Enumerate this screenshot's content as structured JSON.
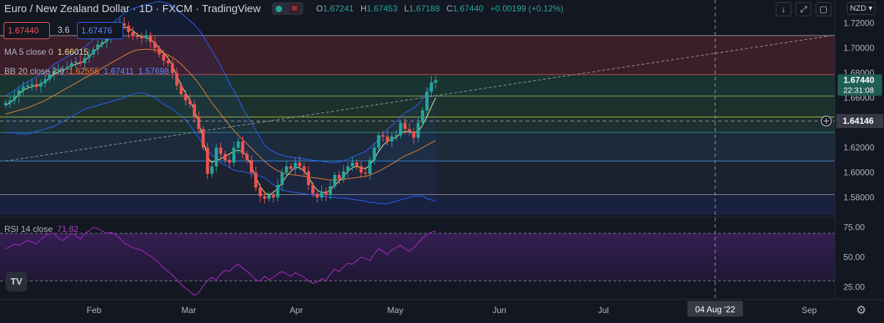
{
  "header": {
    "symbol": "Euro / New Zealand Dollar · 1D · FXCM · TradingView",
    "toggle_icon": "wave-icon",
    "open_label": "O",
    "open": "1.67241",
    "high_label": "H",
    "high": "1.67453",
    "low_label": "L",
    "low": "1.67188",
    "close_label": "C",
    "close": "1.67440",
    "change": "+0.00199 (+0.12%)"
  },
  "quote": {
    "sell": "1.67440",
    "spread": "3.6",
    "buy": "1.67476"
  },
  "indicators": {
    "ma_label": "MA 5 close 0",
    "ma_value": "1.66015",
    "bb_label": "BB 20 close 2.0",
    "bb_basis": "1.62555",
    "bb_upper": "1.67411",
    "bb_lower": "1.57698",
    "rsi_label": "RSI 14 close",
    "rsi_value": "71.82"
  },
  "currency": "NZD",
  "colors": {
    "up": "#26a69a",
    "down": "#ef5350",
    "ma": "#f0e68c",
    "bb_basis": "#e8852e",
    "bb_band": "#2962ff",
    "rsi": "#9c27b0",
    "background": "#131722"
  },
  "chart_data": [
    {
      "type": "candlestick",
      "title": "Euro / New Zealand Dollar · 1D · FXCM",
      "ylim": [
        1.566,
        1.725
      ],
      "yticks": [
        "1.72000",
        "1.70000",
        "1.68000",
        "1.66000",
        "1.64000",
        "1.62000",
        "1.60000",
        "1.58000"
      ],
      "last_price": "1.67440",
      "countdown": "22:31:08",
      "crosshair_price": "1.64146",
      "crosshair_date": "04 Aug '22",
      "xticks": [
        "Feb",
        "Mar",
        "Apr",
        "May",
        "Jun",
        "Jul",
        "Sep"
      ],
      "horizontal_levels": [
        1.7101,
        1.6788,
        1.6615,
        1.6447,
        1.6322,
        1.6093,
        1.5823
      ],
      "close": [
        1.656,
        1.658,
        1.661,
        1.666,
        1.669,
        1.67,
        1.671,
        1.669,
        1.672,
        1.675,
        1.679,
        1.682,
        1.683,
        1.683,
        1.685,
        1.688,
        1.689,
        1.688,
        1.692,
        1.695,
        1.699,
        1.703,
        1.705,
        1.708,
        1.711,
        1.715,
        1.72,
        1.718,
        1.713,
        1.71,
        1.709,
        1.708,
        1.71,
        1.705,
        1.7,
        1.695,
        1.69,
        1.688,
        1.68,
        1.67,
        1.663,
        1.658,
        1.655,
        1.645,
        1.635,
        1.62,
        1.599,
        1.605,
        1.62,
        1.615,
        1.61,
        1.608,
        1.62,
        1.625,
        1.615,
        1.61,
        1.6,
        1.588,
        1.581,
        1.579,
        1.582,
        1.58,
        1.59,
        1.6,
        1.605,
        1.603,
        1.608,
        1.605,
        1.601,
        1.59,
        1.583,
        1.58,
        1.585,
        1.582,
        1.589,
        1.598,
        1.595,
        1.601,
        1.605,
        1.608,
        1.605,
        1.6,
        1.599,
        1.61,
        1.62,
        1.63,
        1.629,
        1.625,
        1.629,
        1.63,
        1.64,
        1.635,
        1.633,
        1.628,
        1.64,
        1.65,
        1.665,
        1.6725,
        1.6744
      ],
      "ma5": [
        1.654,
        1.656,
        1.659,
        1.663,
        1.666,
        1.668,
        1.669,
        1.67,
        1.671,
        1.673,
        1.676,
        1.679,
        1.681,
        1.682,
        1.684,
        1.686,
        1.687,
        1.688,
        1.69,
        1.693,
        1.697,
        1.7,
        1.703,
        1.706,
        1.709,
        1.712,
        1.716,
        1.717,
        1.716,
        1.714,
        1.711,
        1.709,
        1.7085,
        1.707,
        1.704,
        1.7,
        1.696,
        1.692,
        1.686,
        1.678,
        1.67,
        1.664,
        1.658,
        1.65,
        1.64,
        1.627,
        1.612,
        1.608,
        1.61,
        1.611,
        1.613,
        1.615,
        1.617,
        1.618,
        1.617,
        1.613,
        1.605,
        1.596,
        1.589,
        1.584,
        1.582,
        1.584,
        1.587,
        1.592,
        1.597,
        1.601,
        1.604,
        1.604,
        1.601,
        1.597,
        1.59,
        1.586,
        1.584,
        1.584,
        1.586,
        1.59,
        1.593,
        1.597,
        1.601,
        1.604,
        1.605,
        1.604,
        1.603,
        1.606,
        1.611,
        1.617,
        1.622,
        1.625,
        1.627,
        1.628,
        1.632,
        1.633,
        1.633,
        1.632,
        1.633,
        1.638,
        1.645,
        1.653,
        1.6601
      ],
      "bb_basis": [
        1.647,
        1.648,
        1.649,
        1.65,
        1.651,
        1.652,
        1.6535,
        1.655,
        1.6565,
        1.658,
        1.66,
        1.662,
        1.664,
        1.666,
        1.668,
        1.67,
        1.672,
        1.674,
        1.676,
        1.678,
        1.68,
        1.682,
        1.684,
        1.686,
        1.688,
        1.69,
        1.692,
        1.694,
        1.696,
        1.6975,
        1.6985,
        1.699,
        1.6992,
        1.699,
        1.6985,
        1.6975,
        1.696,
        1.6945,
        1.6925,
        1.69,
        1.687,
        1.6835,
        1.68,
        1.676,
        1.6715,
        1.6665,
        1.661,
        1.656,
        1.6515,
        1.647,
        1.6425,
        1.638,
        1.634,
        1.63,
        1.6265,
        1.623,
        1.6195,
        1.616,
        1.6125,
        1.609,
        1.606,
        1.6035,
        1.6015,
        1.6,
        1.599,
        1.5985,
        1.598,
        1.5975,
        1.597,
        1.5965,
        1.596,
        1.5955,
        1.595,
        1.5945,
        1.594,
        1.594,
        1.594,
        1.5945,
        1.595,
        1.5955,
        1.596,
        1.5965,
        1.597,
        1.598,
        1.5995,
        1.601,
        1.603,
        1.605,
        1.607,
        1.609,
        1.6115,
        1.6135,
        1.615,
        1.6165,
        1.618,
        1.62,
        1.622,
        1.624,
        1.6256
      ],
      "bb_upper": [
        1.662,
        1.664,
        1.666,
        1.669,
        1.671,
        1.673,
        1.675,
        1.677,
        1.679,
        1.681,
        1.684,
        1.687,
        1.689,
        1.691,
        1.693,
        1.695,
        1.697,
        1.699,
        1.701,
        1.704,
        1.707,
        1.71,
        1.713,
        1.716,
        1.719,
        1.722,
        1.725,
        1.728,
        1.73,
        1.732,
        1.733,
        1.734,
        1.735,
        1.736,
        1.737,
        1.7375,
        1.737,
        1.736,
        1.734,
        1.732,
        1.728,
        1.725,
        1.722,
        1.719,
        1.715,
        1.71,
        1.704,
        1.698,
        1.692,
        1.686,
        1.679,
        1.672,
        1.666,
        1.659,
        1.652,
        1.646,
        1.64,
        1.634,
        1.628,
        1.622,
        1.619,
        1.617,
        1.615,
        1.614,
        1.613,
        1.6125,
        1.612,
        1.6115,
        1.611,
        1.6105,
        1.61,
        1.6095,
        1.609,
        1.6085,
        1.608,
        1.608,
        1.6085,
        1.6095,
        1.611,
        1.6125,
        1.614,
        1.6155,
        1.617,
        1.62,
        1.623,
        1.627,
        1.631,
        1.635,
        1.638,
        1.641,
        1.645,
        1.648,
        1.65,
        1.652,
        1.655,
        1.659,
        1.665,
        1.67,
        1.6741
      ],
      "bb_lower": [
        1.632,
        1.632,
        1.632,
        1.631,
        1.631,
        1.631,
        1.632,
        1.633,
        1.634,
        1.635,
        1.636,
        1.637,
        1.639,
        1.641,
        1.643,
        1.645,
        1.647,
        1.649,
        1.651,
        1.652,
        1.653,
        1.654,
        1.655,
        1.656,
        1.657,
        1.658,
        1.659,
        1.66,
        1.662,
        1.663,
        1.664,
        1.664,
        1.6634,
        1.662,
        1.66,
        1.6575,
        1.655,
        1.653,
        1.651,
        1.648,
        1.646,
        1.642,
        1.638,
        1.633,
        1.628,
        1.623,
        1.618,
        1.614,
        1.611,
        1.608,
        1.606,
        1.604,
        1.602,
        1.601,
        1.601,
        1.6,
        1.599,
        1.598,
        1.597,
        1.596,
        1.593,
        1.59,
        1.588,
        1.586,
        1.585,
        1.5845,
        1.584,
        1.5835,
        1.583,
        1.5825,
        1.582,
        1.5815,
        1.581,
        1.5805,
        1.58,
        1.58,
        1.5795,
        1.5795,
        1.579,
        1.5785,
        1.578,
        1.5775,
        1.577,
        1.576,
        1.576,
        1.575,
        1.575,
        1.575,
        1.576,
        1.577,
        1.578,
        1.579,
        1.58,
        1.581,
        1.581,
        1.581,
        1.579,
        1.578,
        1.577
      ]
    },
    {
      "type": "line",
      "title": "RSI 14 close",
      "ylim": [
        15,
        82
      ],
      "yticks": [
        "75.00",
        "50.00",
        "25.00"
      ],
      "levels": [
        70,
        30
      ],
      "values": [
        57,
        59,
        61,
        60,
        62,
        64,
        63,
        61,
        65,
        68,
        70,
        70,
        66,
        64,
        67,
        70,
        68,
        65,
        70,
        72,
        75,
        74,
        72,
        70,
        71,
        69,
        66,
        62,
        60,
        58,
        57,
        56,
        53,
        51,
        48,
        45,
        41,
        38,
        35,
        31,
        27,
        24,
        21,
        18,
        20,
        26,
        30,
        33,
        31,
        36,
        39,
        38,
        42,
        44,
        41,
        38,
        35,
        31,
        30,
        34,
        31,
        33,
        36,
        38,
        36,
        34,
        37,
        35,
        33,
        30,
        28,
        29,
        32,
        30,
        36,
        40,
        38,
        42,
        45,
        44,
        47,
        50,
        49,
        47,
        53,
        57,
        55,
        52,
        56,
        58,
        60,
        57,
        55,
        58,
        62,
        66,
        69,
        71,
        71.82
      ]
    }
  ]
}
